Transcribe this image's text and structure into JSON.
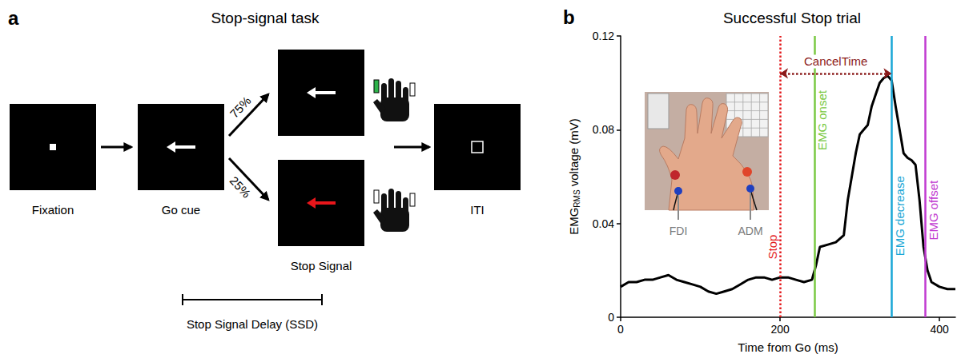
{
  "panel_a": {
    "letter": "a",
    "title": "Stop-signal task",
    "screens": [
      "Fixation",
      "Go cue",
      "Stop Signal",
      "ITI"
    ],
    "branches": [
      "75%",
      "25%"
    ],
    "interval_label": "Stop Signal Delay (SSD)"
  },
  "chart_data": {
    "type": "line",
    "letter": "b",
    "title": "Successful Stop trial",
    "xlabel": "Time from Go (ms)",
    "ylabel": {
      "main": "EMG",
      "sub": "RMS",
      "rest": " voltage (mV)"
    },
    "x": [
      0,
      10,
      20,
      30,
      40,
      50,
      60,
      70,
      80,
      90,
      100,
      110,
      120,
      130,
      140,
      150,
      160,
      170,
      180,
      190,
      200,
      210,
      220,
      230,
      240,
      245,
      250,
      260,
      270,
      280,
      285,
      290,
      295,
      300,
      305,
      310,
      315,
      320,
      325,
      330,
      335,
      340,
      345,
      350,
      355,
      360,
      365,
      370,
      375,
      380,
      385,
      390,
      400,
      410,
      420
    ],
    "values": [
      0.013,
      0.015,
      0.015,
      0.016,
      0.016,
      0.017,
      0.018,
      0.016,
      0.015,
      0.014,
      0.013,
      0.011,
      0.01,
      0.011,
      0.012,
      0.014,
      0.016,
      0.017,
      0.017,
      0.016,
      0.017,
      0.017,
      0.016,
      0.015,
      0.016,
      0.022,
      0.03,
      0.031,
      0.032,
      0.035,
      0.05,
      0.06,
      0.07,
      0.078,
      0.08,
      0.082,
      0.09,
      0.095,
      0.1,
      0.102,
      0.103,
      0.101,
      0.09,
      0.08,
      0.07,
      0.068,
      0.067,
      0.065,
      0.05,
      0.03,
      0.02,
      0.015,
      0.013,
      0.012,
      0.012
    ],
    "color": "#000000",
    "xlim": [
      0,
      420
    ],
    "xticks": [
      0,
      200,
      400
    ],
    "ylim": [
      0,
      0.12
    ],
    "yticks": [
      0,
      0.04,
      0.08,
      0.12
    ],
    "grid": false,
    "markers": [
      {
        "x": 200,
        "label": "Stop",
        "color": "#e31a1c",
        "line_style": "dotted"
      },
      {
        "x": 243,
        "label": "EMG onset",
        "color": "#7ac943",
        "line_style": "solid"
      },
      {
        "x": 340,
        "label": "EMG decrease",
        "color": "#1aa7d6",
        "line_style": "solid"
      },
      {
        "x": 382,
        "label": "EMG offset",
        "color": "#c13ad1",
        "line_style": "solid"
      }
    ],
    "interval": {
      "label": "CancelTime",
      "from": 200,
      "to": 340,
      "y": 0.104,
      "color": "#8b1a1a",
      "line_style": "dotted"
    },
    "inset_labels": [
      "FDI",
      "ADM"
    ]
  }
}
